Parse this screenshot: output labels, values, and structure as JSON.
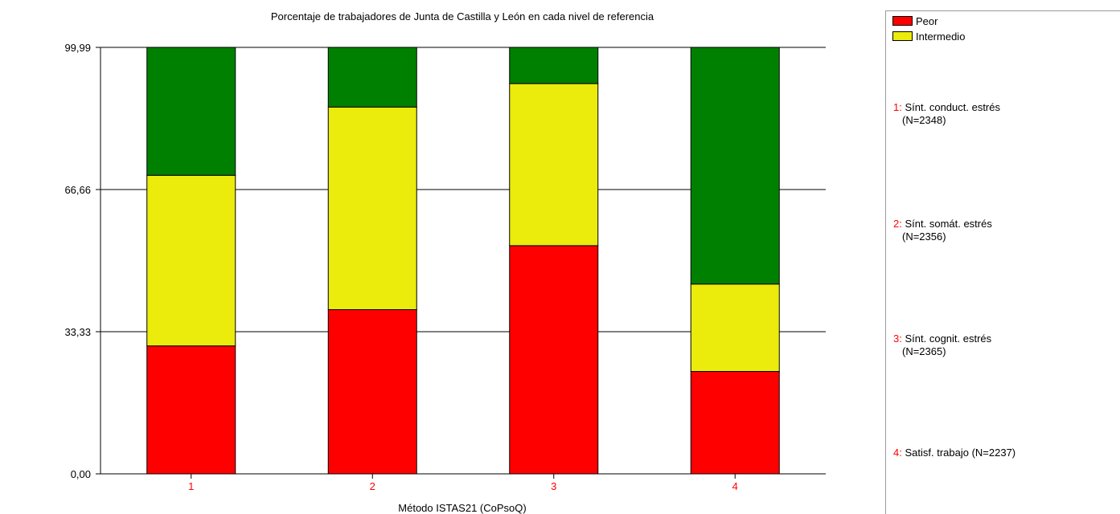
{
  "chart_data": {
    "type": "bar",
    "stacked": true,
    "title": "Porcentaje de trabajadores de Junta de Castilla y León en cada nivel de referencia",
    "xlabel": "Método ISTAS21 (CoPsoQ)",
    "ylabel": "",
    "categories": [
      "1",
      "2",
      "3",
      "4"
    ],
    "yticks": [
      "0,00",
      "33,33",
      "66,66",
      "99,99"
    ],
    "ytick_values": [
      0,
      33.33,
      66.66,
      99.99
    ],
    "ylim": [
      0,
      99.99
    ],
    "grid": "horizontal",
    "series": [
      {
        "name": "Peor",
        "color": "#ff0000",
        "values": [
          30,
          38.5,
          53.5,
          24
        ]
      },
      {
        "name": "Intermedio",
        "color": "#ebeb0c",
        "values": [
          40,
          47.5,
          38,
          20.5
        ]
      },
      {
        "color": "#008000",
        "values": [
          30,
          14,
          8.5,
          55.5
        ]
      }
    ]
  },
  "legend": {
    "entries": [
      {
        "label": "Peor",
        "color": "#ff0000"
      },
      {
        "label": "Intermedio",
        "color": "#ebeb0c"
      }
    ]
  },
  "items": [
    {
      "num": "1",
      "line1": "Sínt. conduct. estrés",
      "line2": "(N=2348)"
    },
    {
      "num": "2",
      "line1": "Sínt. somát. estrés",
      "line2": "(N=2356)"
    },
    {
      "num": "3",
      "line1": "Sínt. cognit. estrés",
      "line2": "(N=2365)"
    },
    {
      "num": "4",
      "line1": "Satisf. trabajo (N=2237)",
      "line2": ""
    }
  ]
}
